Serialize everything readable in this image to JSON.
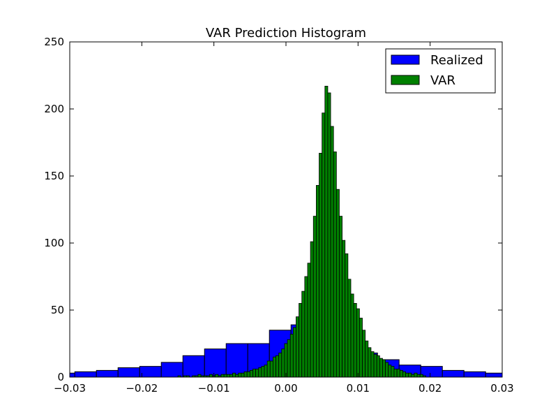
{
  "chart_data": {
    "type": "bar",
    "title": "VAR Prediction Histogram",
    "xlabel": "",
    "ylabel": "",
    "xlim": [
      -0.03,
      0.03
    ],
    "ylim": [
      0,
      250
    ],
    "x_ticks": [
      -0.03,
      -0.02,
      -0.01,
      0.0,
      0.01,
      0.02,
      0.03
    ],
    "x_tick_labels": [
      "−0.03",
      "−0.02",
      "−0.01",
      "0.00",
      "0.01",
      "0.02",
      "0.03"
    ],
    "y_ticks": [
      0,
      50,
      100,
      150,
      200,
      250
    ],
    "y_tick_labels": [
      "0",
      "50",
      "100",
      "150",
      "200",
      "250"
    ],
    "grid": false,
    "legend_position": "top-right",
    "series": [
      {
        "name": "Realized",
        "color": "#0000ff",
        "bins": [
          {
            "x0": -0.0315,
            "x1": -0.0293,
            "value": 3
          },
          {
            "x0": -0.0293,
            "x1": -0.0263,
            "value": 4
          },
          {
            "x0": -0.0263,
            "x1": -0.0233,
            "value": 5
          },
          {
            "x0": -0.0233,
            "x1": -0.0203,
            "value": 7
          },
          {
            "x0": -0.0203,
            "x1": -0.0173,
            "value": 8
          },
          {
            "x0": -0.0173,
            "x1": -0.0143,
            "value": 11
          },
          {
            "x0": -0.0143,
            "x1": -0.0113,
            "value": 16
          },
          {
            "x0": -0.0113,
            "x1": -0.0083,
            "value": 21
          },
          {
            "x0": -0.0083,
            "x1": -0.0053,
            "value": 25
          },
          {
            "x0": -0.0053,
            "x1": -0.0023,
            "value": 25
          },
          {
            "x0": -0.0023,
            "x1": 0.0007,
            "value": 35
          },
          {
            "x0": 0.0007,
            "x1": 0.0037,
            "value": 39
          },
          {
            "x0": 0.0037,
            "x1": 0.0067,
            "value": 27
          },
          {
            "x0": 0.0067,
            "x1": 0.0097,
            "value": 22
          },
          {
            "x0": 0.0097,
            "x1": 0.0127,
            "value": 18
          },
          {
            "x0": 0.0127,
            "x1": 0.0157,
            "value": 13
          },
          {
            "x0": 0.0157,
            "x1": 0.0187,
            "value": 9
          },
          {
            "x0": 0.0187,
            "x1": 0.0217,
            "value": 8
          },
          {
            "x0": 0.0217,
            "x1": 0.0247,
            "value": 5
          },
          {
            "x0": 0.0247,
            "x1": 0.0277,
            "value": 4
          },
          {
            "x0": 0.0277,
            "x1": 0.0307,
            "value": 3
          }
        ]
      },
      {
        "name": "VAR",
        "color": "#008000",
        "bin_start": -0.015,
        "bin_width": 0.0004,
        "values": [
          1,
          0,
          1,
          1,
          0,
          1,
          1,
          2,
          1,
          1,
          1,
          2,
          1,
          2,
          1,
          2,
          2,
          2,
          2,
          3,
          2,
          3,
          3,
          4,
          4,
          5,
          6,
          6,
          7,
          8,
          9,
          12,
          12,
          15,
          16,
          18,
          21,
          25,
          28,
          32,
          37,
          45,
          55,
          64,
          75,
          85,
          101,
          120,
          143,
          167,
          197,
          217,
          212,
          187,
          168,
          140,
          120,
          102,
          92,
          73,
          62,
          55,
          51,
          44,
          35,
          27,
          22,
          19,
          17,
          16,
          14,
          13,
          11,
          9,
          8,
          6,
          6,
          5,
          4,
          3,
          3,
          2,
          3,
          2,
          2,
          1
        ]
      }
    ]
  },
  "legend": {
    "items": [
      {
        "label": "Realized",
        "color": "#0000ff"
      },
      {
        "label": "VAR",
        "color": "#008000"
      }
    ]
  }
}
